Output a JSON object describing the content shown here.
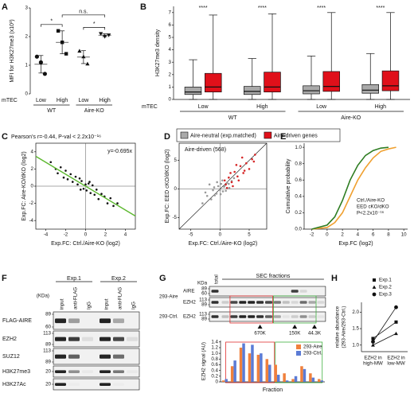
{
  "chart_data": [
    {
      "panel": "A",
      "type": "dot",
      "ylabel": "MFI for H3K27me3 (x10³)",
      "ylim": [
        0,
        3
      ],
      "yticks": [
        0,
        1,
        2,
        3
      ],
      "categories": [
        "Low",
        "High",
        "Low",
        "High"
      ],
      "groups": [
        "WT",
        "Aire-KO"
      ],
      "row_label": "mTEC",
      "markers": [
        "circle",
        "square",
        "triangle",
        "triangle-down"
      ],
      "color": "#111111",
      "values": [
        [
          1.3,
          1.1,
          0.7
        ],
        [
          2.2,
          1.8,
          1.4
        ],
        [
          1.5,
          1.3,
          1.05
        ],
        [
          2.1,
          2.0,
          2.05
        ]
      ],
      "comparisons": [
        {
          "pair": [
            0,
            1
          ],
          "label": "*"
        },
        {
          "pair": [
            1,
            3
          ],
          "label": "n.s."
        },
        {
          "pair": [
            2,
            3
          ],
          "label": "*"
        }
      ]
    },
    {
      "panel": "B",
      "type": "box",
      "ylabel": "H3K27me3 density",
      "ylim": [
        0,
        7.5
      ],
      "yticks": [
        0,
        1,
        2,
        3,
        4,
        5,
        6,
        7
      ],
      "categories": [
        "Low",
        "High",
        "Low",
        "High"
      ],
      "groups": [
        "WT",
        "Aire-KO"
      ],
      "row_label": "mTEC",
      "annotations": [
        "****",
        "****",
        "****",
        "****"
      ],
      "series": [
        {
          "name": "Aire-neutral (exp.matched)",
          "color": "#a9a9a9",
          "boxes": [
            {
              "low": 0,
              "q1": 0.4,
              "median": 0.6,
              "q3": 1.0,
              "high": 3.2
            },
            {
              "low": 0,
              "q1": 0.4,
              "median": 0.65,
              "q3": 1.05,
              "high": 3.3
            },
            {
              "low": 0,
              "q1": 0.45,
              "median": 0.7,
              "q3": 1.1,
              "high": 3.5
            },
            {
              "low": 0,
              "q1": 0.5,
              "median": 0.75,
              "q3": 1.2,
              "high": 3.7
            }
          ]
        },
        {
          "name": "Aire-driven genes",
          "color": "#e0101a",
          "boxes": [
            {
              "low": 0,
              "q1": 0.6,
              "median": 1.0,
              "q3": 2.1,
              "high": 6.8
            },
            {
              "low": 0,
              "q1": 0.6,
              "median": 1.0,
              "q3": 2.2,
              "high": 6.9
            },
            {
              "low": 0,
              "q1": 0.65,
              "median": 1.05,
              "q3": 2.25,
              "high": 7
            },
            {
              "low": 0,
              "q1": 0.7,
              "median": 1.1,
              "q3": 2.3,
              "high": 7
            }
          ]
        }
      ]
    },
    {
      "panel": "C",
      "type": "scatter",
      "title": "Pearson's r=-0.44, P-val < 2.2x10⁻¹⁶",
      "annotation": "y=-0.695x",
      "fit_slope": -0.695,
      "fit_color": "#5cb82e",
      "zero_lines": true,
      "xlabel": "Exp.FC: Ctrl./Aire-KO (log2)",
      "ylabel": "Exp.FC: Aire-KO/dKO (log2)",
      "xlim": [
        -5,
        5
      ],
      "ylim": [
        -5,
        5
      ],
      "xticks": [
        -4,
        -2,
        0,
        2,
        4
      ],
      "yticks": [
        -4,
        -2,
        0,
        2,
        4
      ],
      "series": [
        {
          "color": "#111111",
          "x": [
            -3.5,
            -3,
            -2.8,
            -2.5,
            -2.2,
            -2,
            -1.8,
            -1.5,
            -1.3,
            -1,
            -0.8,
            -0.6,
            -0.4,
            -0.2,
            0,
            0.1,
            0.3,
            0.5,
            0.7,
            0.9,
            1.1,
            1.3,
            1.6,
            1.9,
            2.2,
            2.5,
            2.8,
            3.2,
            -0.5,
            0.4
          ],
          "values": [
            2.8,
            2.0,
            1.5,
            2.2,
            1.0,
            1.8,
            0.8,
            1.4,
            0.5,
            1.1,
            0.2,
            0.9,
            0.6,
            -0.3,
            0.2,
            -0.5,
            0.3,
            -0.8,
            0.1,
            -1.0,
            -0.4,
            -1.5,
            -0.9,
            -1.2,
            -2.0,
            -1.4,
            -2.3,
            -2.0,
            -0.4,
            0.5
          ]
        }
      ]
    },
    {
      "panel": "D",
      "type": "scatter",
      "title": "Aire-driven (568)",
      "title_color": "#d62728",
      "diagonal": true,
      "zero_lines": true,
      "xlabel": "Exp.FC: Ctrl./Aire-KO (log2)",
      "xlabel_color": "#f0a030",
      "ylabel": "Exp.FC: EED cKO/dKO (log2)",
      "ylabel_color": "#3a9a2a",
      "xlim": [
        -7,
        8
      ],
      "ylim": [
        -7,
        8
      ],
      "xticks": [
        -5,
        0,
        5
      ],
      "yticks": [
        -5,
        0,
        5
      ],
      "series": [
        {
          "color": "#9a9a9a",
          "x": [
            -3,
            -2.2,
            -1.5,
            -1,
            -0.6,
            -0.3,
            0,
            0.2,
            0.5,
            0.8,
            1.2,
            1.6,
            2,
            -2.5,
            -1.8,
            -0.9,
            0.4,
            1,
            1.5,
            2.4,
            -0.5,
            0.7,
            -1.2,
            0.1
          ],
          "values": [
            -2.5,
            -1.2,
            -1.8,
            0.3,
            -0.8,
            0.5,
            -0.2,
            0.9,
            -0.4,
            0.6,
            1.1,
            0.2,
            1.4,
            -0.6,
            0.8,
            -1.1,
            1.5,
            -0.3,
            0.9,
            1.9,
            1.2,
            0.4,
            -0.2,
            -0.9
          ]
        },
        {
          "color": "#d62728",
          "x": [
            1,
            1.5,
            2,
            2.5,
            3,
            3.5,
            4,
            4.5,
            5,
            5.5,
            6,
            2.2,
            3.2,
            4.2,
            1.8,
            2.8,
            3.8,
            0.8,
            1.2,
            5.8
          ],
          "values": [
            0.8,
            2,
            1.2,
            3,
            2.2,
            4,
            2.8,
            4.5,
            3.5,
            5.2,
            6,
            0.5,
            1.5,
            3.2,
            2.8,
            4.2,
            5.5,
            1.5,
            0.2,
            4.8
          ]
        }
      ]
    },
    {
      "panel": "E",
      "type": "line",
      "xlabel": "Exp.FC (log2)",
      "ylabel": "Cumulative probability",
      "annotation": "P<2.2x10⁻¹⁶",
      "xlim": [
        -3,
        10.5
      ],
      "ylim": [
        0,
        1.05
      ],
      "xticks": [
        -2,
        0,
        2,
        4,
        6,
        8,
        10
      ],
      "yticks": [
        {
          "value": 0,
          "label": "0.0"
        },
        0.2,
        0.4,
        0.6,
        0.8,
        {
          "value": 1,
          "label": "1.0"
        }
      ],
      "series": [
        {
          "name": "Ctrl./Aire-KO",
          "color": "#f0a030",
          "x": [
            -2,
            0,
            1,
            2,
            3,
            4,
            5,
            6,
            7,
            8,
            9
          ],
          "values": [
            0,
            0.02,
            0.08,
            0.2,
            0.4,
            0.6,
            0.75,
            0.87,
            0.95,
            0.98,
            1
          ]
        },
        {
          "name": "EED cKO/dKO",
          "color": "#2e7d22",
          "x": [
            -2,
            0,
            1,
            2,
            3,
            4,
            5,
            6,
            7,
            8
          ],
          "values": [
            0,
            0.05,
            0.15,
            0.35,
            0.6,
            0.78,
            0.9,
            0.96,
            0.99,
            1
          ]
        }
      ]
    },
    {
      "type": "bar",
      "ylabel": "EZH2 signal (AU)",
      "xlabel": "Fraction",
      "ylim": [
        0,
        1.45
      ],
      "yticks": [
        0,
        0.2,
        0.4,
        0.6,
        0.8,
        {
          "value": 1,
          "label": "1.0"
        },
        1.2,
        1.4
      ],
      "categories": [
        null,
        null,
        null,
        null,
        null,
        null,
        null,
        null,
        null,
        null,
        null,
        null
      ],
      "series": [
        {
          "name": "293-Aire",
          "color": "#f0803c",
          "values": [
            0.05,
            0.55,
            1.2,
            1.0,
            0.95,
            0.8,
            0.6,
            0.3,
            0.1,
            0.55,
            0.3,
            0.1
          ]
        },
        {
          "name": "293-Ctrl.",
          "color": "#5b7bd5",
          "values": [
            0.1,
            0.75,
            1.35,
            1.3,
            1.0,
            0.6,
            0.25,
            0.05,
            0.2,
            0.45,
            0.15,
            0.05
          ]
        }
      ]
    },
    {
      "panel": "H",
      "type": "line",
      "ylabel": [
        "relative abundance",
        "(293-Aire/293-Ctrl.)"
      ],
      "categories": [
        [
          "EZH2 in",
          "high-MW"
        ],
        [
          "EZH2 in",
          "low-MW"
        ]
      ],
      "ylim": [
        0.8,
        2.3
      ],
      "yticks": [
        {
          "value": 1,
          "label": "1.0"
        },
        1.5,
        {
          "value": 2,
          "label": "2.0"
        }
      ],
      "series": [
        {
          "name": "Exp.1",
          "marker": "square",
          "color": "#111111",
          "values": [
            1.2,
            1.7
          ]
        },
        {
          "name": "Exp.2",
          "marker": "triangle",
          "color": "#111111",
          "values": [
            1.0,
            1.35
          ]
        },
        {
          "name": "Exp.3",
          "marker": "circle",
          "color": "#111111",
          "values": [
            1.1,
            2.15
          ]
        }
      ]
    }
  ],
  "blots": [
    {
      "panel": "F",
      "unit": "(KDa)",
      "experiments": [
        "Exp.1",
        "Exp.2"
      ],
      "lanes": [
        "input",
        "anti-FLAG",
        "IgG",
        "input",
        "anti-FLAG",
        "IgG"
      ],
      "rows": [
        {
          "name": "FLAG-AIRE",
          "markers": [
            89,
            60
          ]
        },
        {
          "name": "EZH2",
          "markers": [
            113,
            89
          ]
        },
        {
          "name": "SUZ12",
          "markers": [
            113,
            89
          ]
        },
        {
          "name": "H3K27me3",
          "markers": [
            20
          ]
        },
        {
          "name": "H3K27Ac",
          "markers": [
            20
          ]
        }
      ]
    },
    {
      "panel": "G",
      "unit": "KDa",
      "lane_header": "total",
      "fractions_header": "SEC fractions",
      "groups": [
        {
          "name": "293-Aire",
          "rows": [
            {
              "name": "AIRE",
              "markers": [
                89,
                60
              ]
            },
            {
              "name": "EZH2",
              "markers": [
                113,
                89
              ]
            }
          ]
        },
        {
          "name": "293-Ctrl.",
          "rows": [
            {
              "name": "EZH2",
              "markers": [
                113,
                89
              ]
            }
          ]
        }
      ],
      "size_markers": [
        "670K",
        "150K",
        "44.3K"
      ]
    }
  ]
}
